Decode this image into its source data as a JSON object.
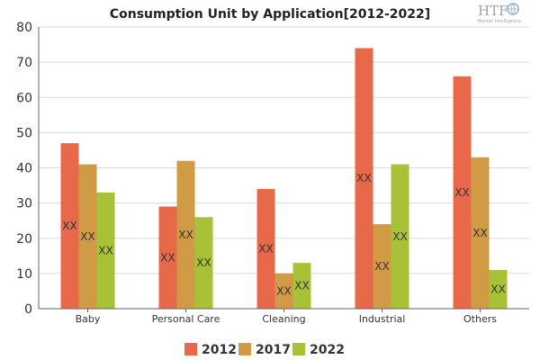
{
  "chart_data": {
    "type": "bar",
    "title": "Consumption Unit by  Application[2012-2022]",
    "categories": [
      "Baby",
      "Personal Care",
      "Cleaning",
      "Industrial",
      "Others"
    ],
    "series": [
      {
        "name": "2012",
        "color": "#e8684a",
        "values": [
          47,
          29,
          34,
          74,
          66
        ]
      },
      {
        "name": "2017",
        "color": "#d19b45",
        "values": [
          41,
          42,
          10,
          24,
          43
        ]
      },
      {
        "name": "2022",
        "color": "#a8c238",
        "values": [
          33,
          26,
          13,
          41,
          11
        ]
      }
    ],
    "data_label": "XX",
    "ylim": [
      0,
      80
    ],
    "yticks": [
      "0",
      "10",
      "20",
      "30",
      "40",
      "50",
      "60",
      "70",
      "80"
    ],
    "grid": true,
    "legend": "bottom"
  },
  "logo": {
    "text": "HTF",
    "tagline": "Market Intelligence",
    "icon": "globe-icon"
  }
}
